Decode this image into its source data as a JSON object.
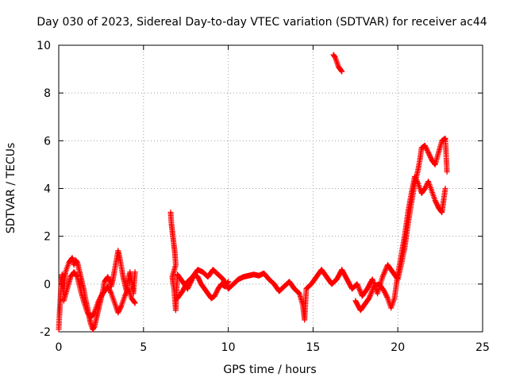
{
  "chart_data": {
    "type": "scatter",
    "title": "Day 030 of 2023, Sidereal Day-to-day VTEC variation (SDTVAR) for receiver ac44",
    "xlabel": "GPS time / hours",
    "ylabel": "SDTVAR / TECUs",
    "xlim": [
      0,
      25
    ],
    "ylim": [
      -2,
      10
    ],
    "xticks": [
      0,
      5,
      10,
      15,
      20,
      25
    ],
    "yticks": [
      -2,
      0,
      2,
      4,
      6,
      8,
      10
    ],
    "grid": true,
    "marker": "+",
    "marker_color": "#ff0000",
    "series": [
      {
        "name": "SDTVAR",
        "points": [
          [
            0.0,
            -1.9
          ],
          [
            0.05,
            -1.2
          ],
          [
            0.1,
            -0.6
          ],
          [
            0.15,
            0.1
          ],
          [
            0.2,
            0.4
          ],
          [
            0.25,
            0.0
          ],
          [
            0.3,
            -0.4
          ],
          [
            0.35,
            0.2
          ],
          [
            0.4,
            0.5
          ],
          [
            0.5,
            0.7
          ],
          [
            0.6,
            0.9
          ],
          [
            0.7,
            1.0
          ],
          [
            0.8,
            1.1
          ],
          [
            0.9,
            0.8
          ],
          [
            1.0,
            1.0
          ],
          [
            1.1,
            0.9
          ],
          [
            1.2,
            0.6
          ],
          [
            1.3,
            0.3
          ],
          [
            1.4,
            0.0
          ],
          [
            1.5,
            -0.3
          ],
          [
            1.6,
            -0.7
          ],
          [
            1.7,
            -1.0
          ],
          [
            1.8,
            -1.4
          ],
          [
            1.9,
            -1.7
          ],
          [
            2.0,
            -1.9
          ],
          [
            2.1,
            -1.8
          ],
          [
            2.2,
            -1.5
          ],
          [
            2.3,
            -1.2
          ],
          [
            2.4,
            -0.9
          ],
          [
            2.5,
            -0.6
          ],
          [
            2.6,
            -0.3
          ],
          [
            2.7,
            0.1
          ],
          [
            2.8,
            0.2
          ],
          [
            2.9,
            0.3
          ],
          [
            3.0,
            0.1
          ],
          [
            3.1,
            -0.1
          ],
          [
            3.2,
            0.2
          ],
          [
            3.3,
            0.6
          ],
          [
            3.4,
            1.0
          ],
          [
            3.5,
            1.4
          ],
          [
            3.6,
            1.1
          ],
          [
            3.7,
            0.7
          ],
          [
            3.8,
            0.3
          ],
          [
            3.9,
            0.0
          ],
          [
            4.0,
            -0.3
          ],
          [
            4.1,
            0.2
          ],
          [
            4.2,
            0.5
          ],
          [
            4.3,
            0.1
          ],
          [
            4.4,
            -0.4
          ],
          [
            4.5,
            0.5
          ],
          [
            0.3,
            -0.7
          ],
          [
            0.5,
            -0.2
          ],
          [
            0.7,
            0.3
          ],
          [
            0.9,
            0.5
          ],
          [
            1.1,
            0.3
          ],
          [
            1.3,
            -0.3
          ],
          [
            1.5,
            -0.8
          ],
          [
            1.7,
            -1.2
          ],
          [
            1.9,
            -1.4
          ],
          [
            2.1,
            -1.2
          ],
          [
            2.3,
            -0.8
          ],
          [
            2.5,
            -0.5
          ],
          [
            2.7,
            -0.3
          ],
          [
            2.9,
            -0.1
          ],
          [
            3.1,
            -0.4
          ],
          [
            3.3,
            -0.8
          ],
          [
            3.5,
            -1.2
          ],
          [
            3.7,
            -0.9
          ],
          [
            3.9,
            -0.5
          ],
          [
            4.1,
            -0.2
          ],
          [
            4.3,
            -0.6
          ],
          [
            4.5,
            -0.8
          ],
          [
            6.6,
            3.0
          ],
          [
            6.65,
            2.5
          ],
          [
            6.7,
            2.2
          ],
          [
            6.75,
            1.9
          ],
          [
            6.8,
            1.6
          ],
          [
            6.85,
            1.3
          ],
          [
            6.9,
            0.8
          ],
          [
            6.7,
            0.3
          ],
          [
            6.75,
            0.0
          ],
          [
            6.8,
            -0.2
          ],
          [
            6.9,
            -1.1
          ],
          [
            7.0,
            0.4
          ],
          [
            7.2,
            0.2
          ],
          [
            7.4,
            0.0
          ],
          [
            7.6,
            -0.2
          ],
          [
            7.8,
            0.1
          ],
          [
            8.0,
            0.4
          ],
          [
            8.2,
            0.3
          ],
          [
            8.4,
            0.0
          ],
          [
            8.6,
            -0.2
          ],
          [
            8.8,
            -0.4
          ],
          [
            9.0,
            -0.6
          ],
          [
            9.2,
            -0.5
          ],
          [
            9.4,
            -0.2
          ],
          [
            9.6,
            0.0
          ],
          [
            9.8,
            -0.1
          ],
          [
            10.0,
            0.1
          ],
          [
            7.0,
            -0.6
          ],
          [
            7.3,
            -0.3
          ],
          [
            7.6,
            0.1
          ],
          [
            7.9,
            0.3
          ],
          [
            8.2,
            0.6
          ],
          [
            8.5,
            0.5
          ],
          [
            8.8,
            0.3
          ],
          [
            9.1,
            0.6
          ],
          [
            9.4,
            0.4
          ],
          [
            9.7,
            0.2
          ],
          [
            10.0,
            -0.2
          ],
          [
            10.3,
            0.0
          ],
          [
            10.6,
            0.2
          ],
          [
            10.9,
            0.3
          ],
          [
            11.2,
            0.35
          ],
          [
            11.5,
            0.4
          ],
          [
            11.8,
            0.35
          ],
          [
            12.1,
            0.45
          ],
          [
            12.4,
            0.2
          ],
          [
            12.7,
            0.0
          ],
          [
            13.0,
            -0.3
          ],
          [
            13.3,
            -0.1
          ],
          [
            13.6,
            0.1
          ],
          [
            13.9,
            -0.2
          ],
          [
            14.2,
            -0.4
          ],
          [
            14.4,
            -0.9
          ],
          [
            14.5,
            -1.5
          ],
          [
            14.6,
            -0.2
          ],
          [
            14.9,
            0.0
          ],
          [
            15.2,
            0.3
          ],
          [
            15.5,
            0.6
          ],
          [
            15.8,
            0.3
          ],
          [
            16.1,
            0.0
          ],
          [
            16.4,
            0.2
          ],
          [
            16.7,
            0.6
          ],
          [
            17.0,
            0.2
          ],
          [
            17.3,
            -0.2
          ],
          [
            17.6,
            0.0
          ],
          [
            17.9,
            -0.5
          ],
          [
            18.2,
            -0.2
          ],
          [
            18.5,
            0.2
          ],
          [
            18.8,
            -0.4
          ],
          [
            19.1,
            0.3
          ],
          [
            19.4,
            0.8
          ],
          [
            19.7,
            0.5
          ],
          [
            20.0,
            0.2
          ],
          [
            20.2,
            0.8
          ],
          [
            20.4,
            1.5
          ],
          [
            20.6,
            2.5
          ],
          [
            20.8,
            3.4
          ],
          [
            21.0,
            4.2
          ],
          [
            21.2,
            4.8
          ],
          [
            21.3,
            5.2
          ],
          [
            21.4,
            5.7
          ],
          [
            21.6,
            5.8
          ],
          [
            21.8,
            5.5
          ],
          [
            22.0,
            5.2
          ],
          [
            22.2,
            5.0
          ],
          [
            22.4,
            5.5
          ],
          [
            22.6,
            6.0
          ],
          [
            22.8,
            6.1
          ],
          [
            22.9,
            4.7
          ],
          [
            17.5,
            -0.7
          ],
          [
            17.8,
            -1.1
          ],
          [
            18.0,
            -0.9
          ],
          [
            18.3,
            -0.6
          ],
          [
            18.6,
            -0.1
          ],
          [
            18.9,
            0.0
          ],
          [
            19.2,
            -0.3
          ],
          [
            19.4,
            -0.6
          ],
          [
            19.6,
            -1.0
          ],
          [
            19.8,
            -0.6
          ],
          [
            20.0,
            0.4
          ],
          [
            20.2,
            1.2
          ],
          [
            20.4,
            2.0
          ],
          [
            20.6,
            3.0
          ],
          [
            20.8,
            3.8
          ],
          [
            21.0,
            4.5
          ],
          [
            21.2,
            4.2
          ],
          [
            21.4,
            3.8
          ],
          [
            21.6,
            4.0
          ],
          [
            21.8,
            4.3
          ],
          [
            22.0,
            3.9
          ],
          [
            22.2,
            3.5
          ],
          [
            22.4,
            3.2
          ],
          [
            22.6,
            3.0
          ],
          [
            22.8,
            4.0
          ],
          [
            16.2,
            9.6
          ],
          [
            16.3,
            9.5
          ],
          [
            16.4,
            9.3
          ],
          [
            16.5,
            9.1
          ],
          [
            16.6,
            9.0
          ],
          [
            16.7,
            8.9
          ]
        ]
      }
    ]
  }
}
